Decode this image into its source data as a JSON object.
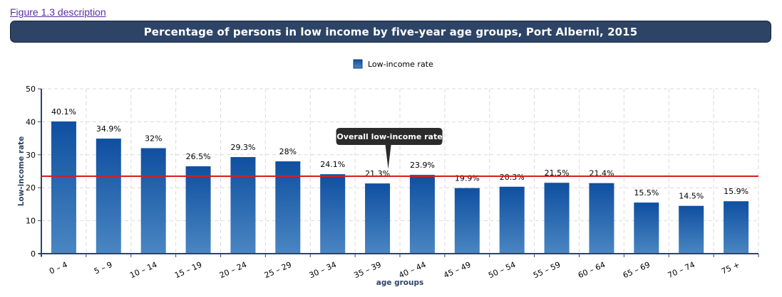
{
  "link": {
    "label": "Figure 1.3 description"
  },
  "colors": {
    "title_bg": "#2d4466",
    "bar_top": "#0f4fa0",
    "bar_bottom": "#4a86c2",
    "reference_line": "#d31f1f",
    "axis": "#2d4466",
    "tooltip_bg": "#2b2b2b"
  },
  "chart_data": {
    "type": "bar",
    "title": "Percentage of persons in low income by five-year age groups, Port Alberni, 2015",
    "xlabel": "age groups",
    "ylabel": "Low-income rate",
    "ylim": [
      0,
      50
    ],
    "yticks": [
      0,
      10,
      20,
      30,
      40,
      50
    ],
    "grid": true,
    "legend_position": "top-center",
    "categories": [
      "0 – 4",
      "5 – 9",
      "10 – 14",
      "15 – 19",
      "20 – 24",
      "25 – 29",
      "30 – 34",
      "35 – 39",
      "40 – 44",
      "45 – 49",
      "50 – 54",
      "55 – 59",
      "60 – 64",
      "65 – 69",
      "70 – 74",
      "75 +"
    ],
    "series": [
      {
        "name": "Low-income rate",
        "values": [
          40.1,
          34.9,
          32,
          26.5,
          29.3,
          28,
          24.1,
          21.3,
          23.9,
          19.9,
          20.3,
          21.5,
          21.4,
          15.5,
          14.5,
          15.9
        ],
        "labels": [
          "40.1%",
          "34.9%",
          "32%",
          "26.5%",
          "29.3%",
          "28%",
          "24.1%",
          "21.3%",
          "23.9%",
          "19.9%",
          "20.3%",
          "21.5%",
          "21.4%",
          "15.5%",
          "14.5%",
          "15.9%"
        ]
      }
    ],
    "reference_line": {
      "label": "Overall low-income rate",
      "value": 23.5
    }
  }
}
